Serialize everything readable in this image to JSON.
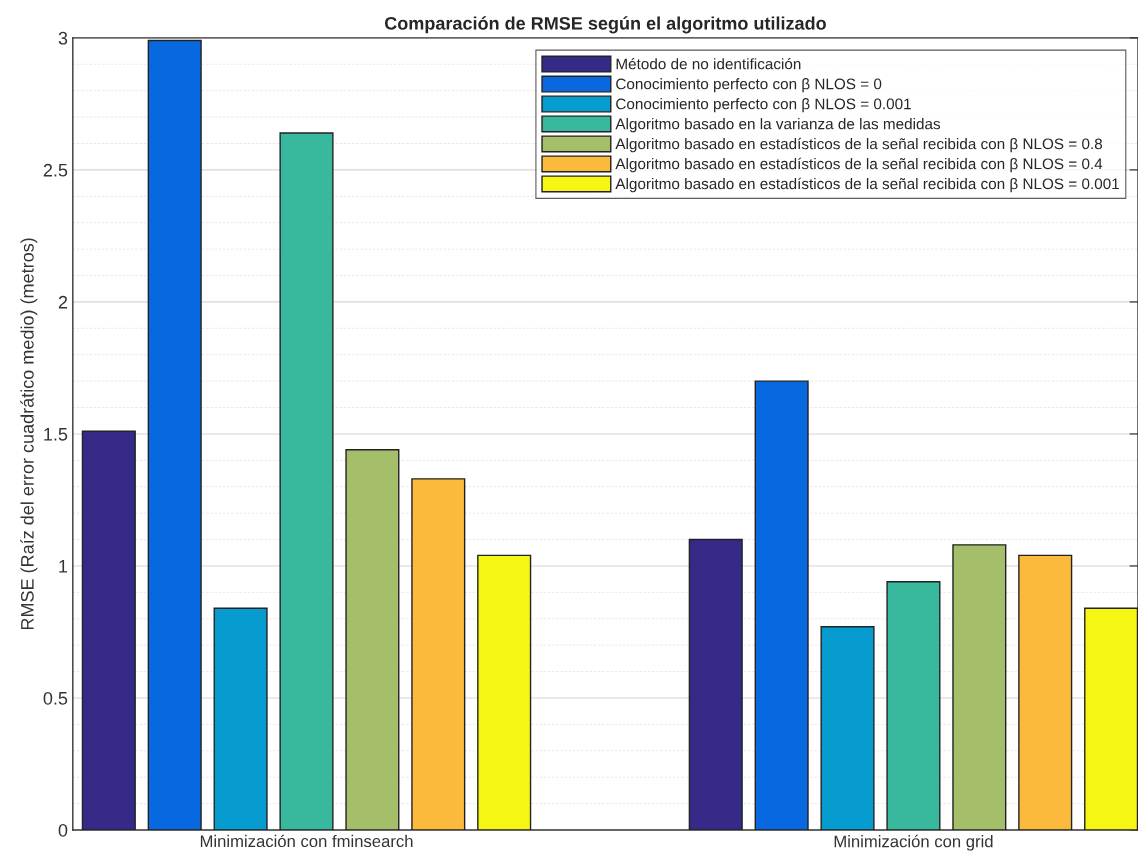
{
  "chart_data": {
    "type": "bar",
    "title": "Comparación de RMSE según el algoritmo utilizado",
    "ylabel": "RMSE (Raíz del error cuadrático medio) (metros)",
    "categories": [
      "Minimización con fminsearch",
      "Minimización con grid"
    ],
    "series": [
      {
        "name": "Método de no identificación",
        "color": "#352a87",
        "values": [
          1.51,
          1.1
        ]
      },
      {
        "name": "Conocimiento perfecto con β NLOS = 0",
        "color": "#0868e0",
        "values": [
          2.99,
          1.7
        ]
      },
      {
        "name": "Conocimiento perfecto con β NLOS = 0.001",
        "color": "#069ccf",
        "values": [
          0.84,
          0.77
        ]
      },
      {
        "name": "Algoritmo basado en la varianza de las medidas",
        "color": "#38b89c",
        "values": [
          2.64,
          0.94
        ]
      },
      {
        "name": "Algoritmo basado en estadísticos de la señal recibida con β NLOS = 0.8",
        "color": "#a5be6a",
        "values": [
          1.44,
          1.08
        ]
      },
      {
        "name": "Algoritmo basado en estadísticos de la señal recibida con β NLOS = 0.4",
        "color": "#fbba3c",
        "values": [
          1.33,
          1.04
        ]
      },
      {
        "name": "Algoritmo basado en estadísticos de la señal recibida con β NLOS = 0.001",
        "color": "#f6f614",
        "values": [
          1.04,
          0.84
        ]
      }
    ],
    "ylim": [
      0,
      3
    ],
    "yticks": [
      0,
      0.5,
      1,
      1.5,
      2,
      2.5,
      3
    ],
    "grid": true,
    "legend": "top right"
  }
}
